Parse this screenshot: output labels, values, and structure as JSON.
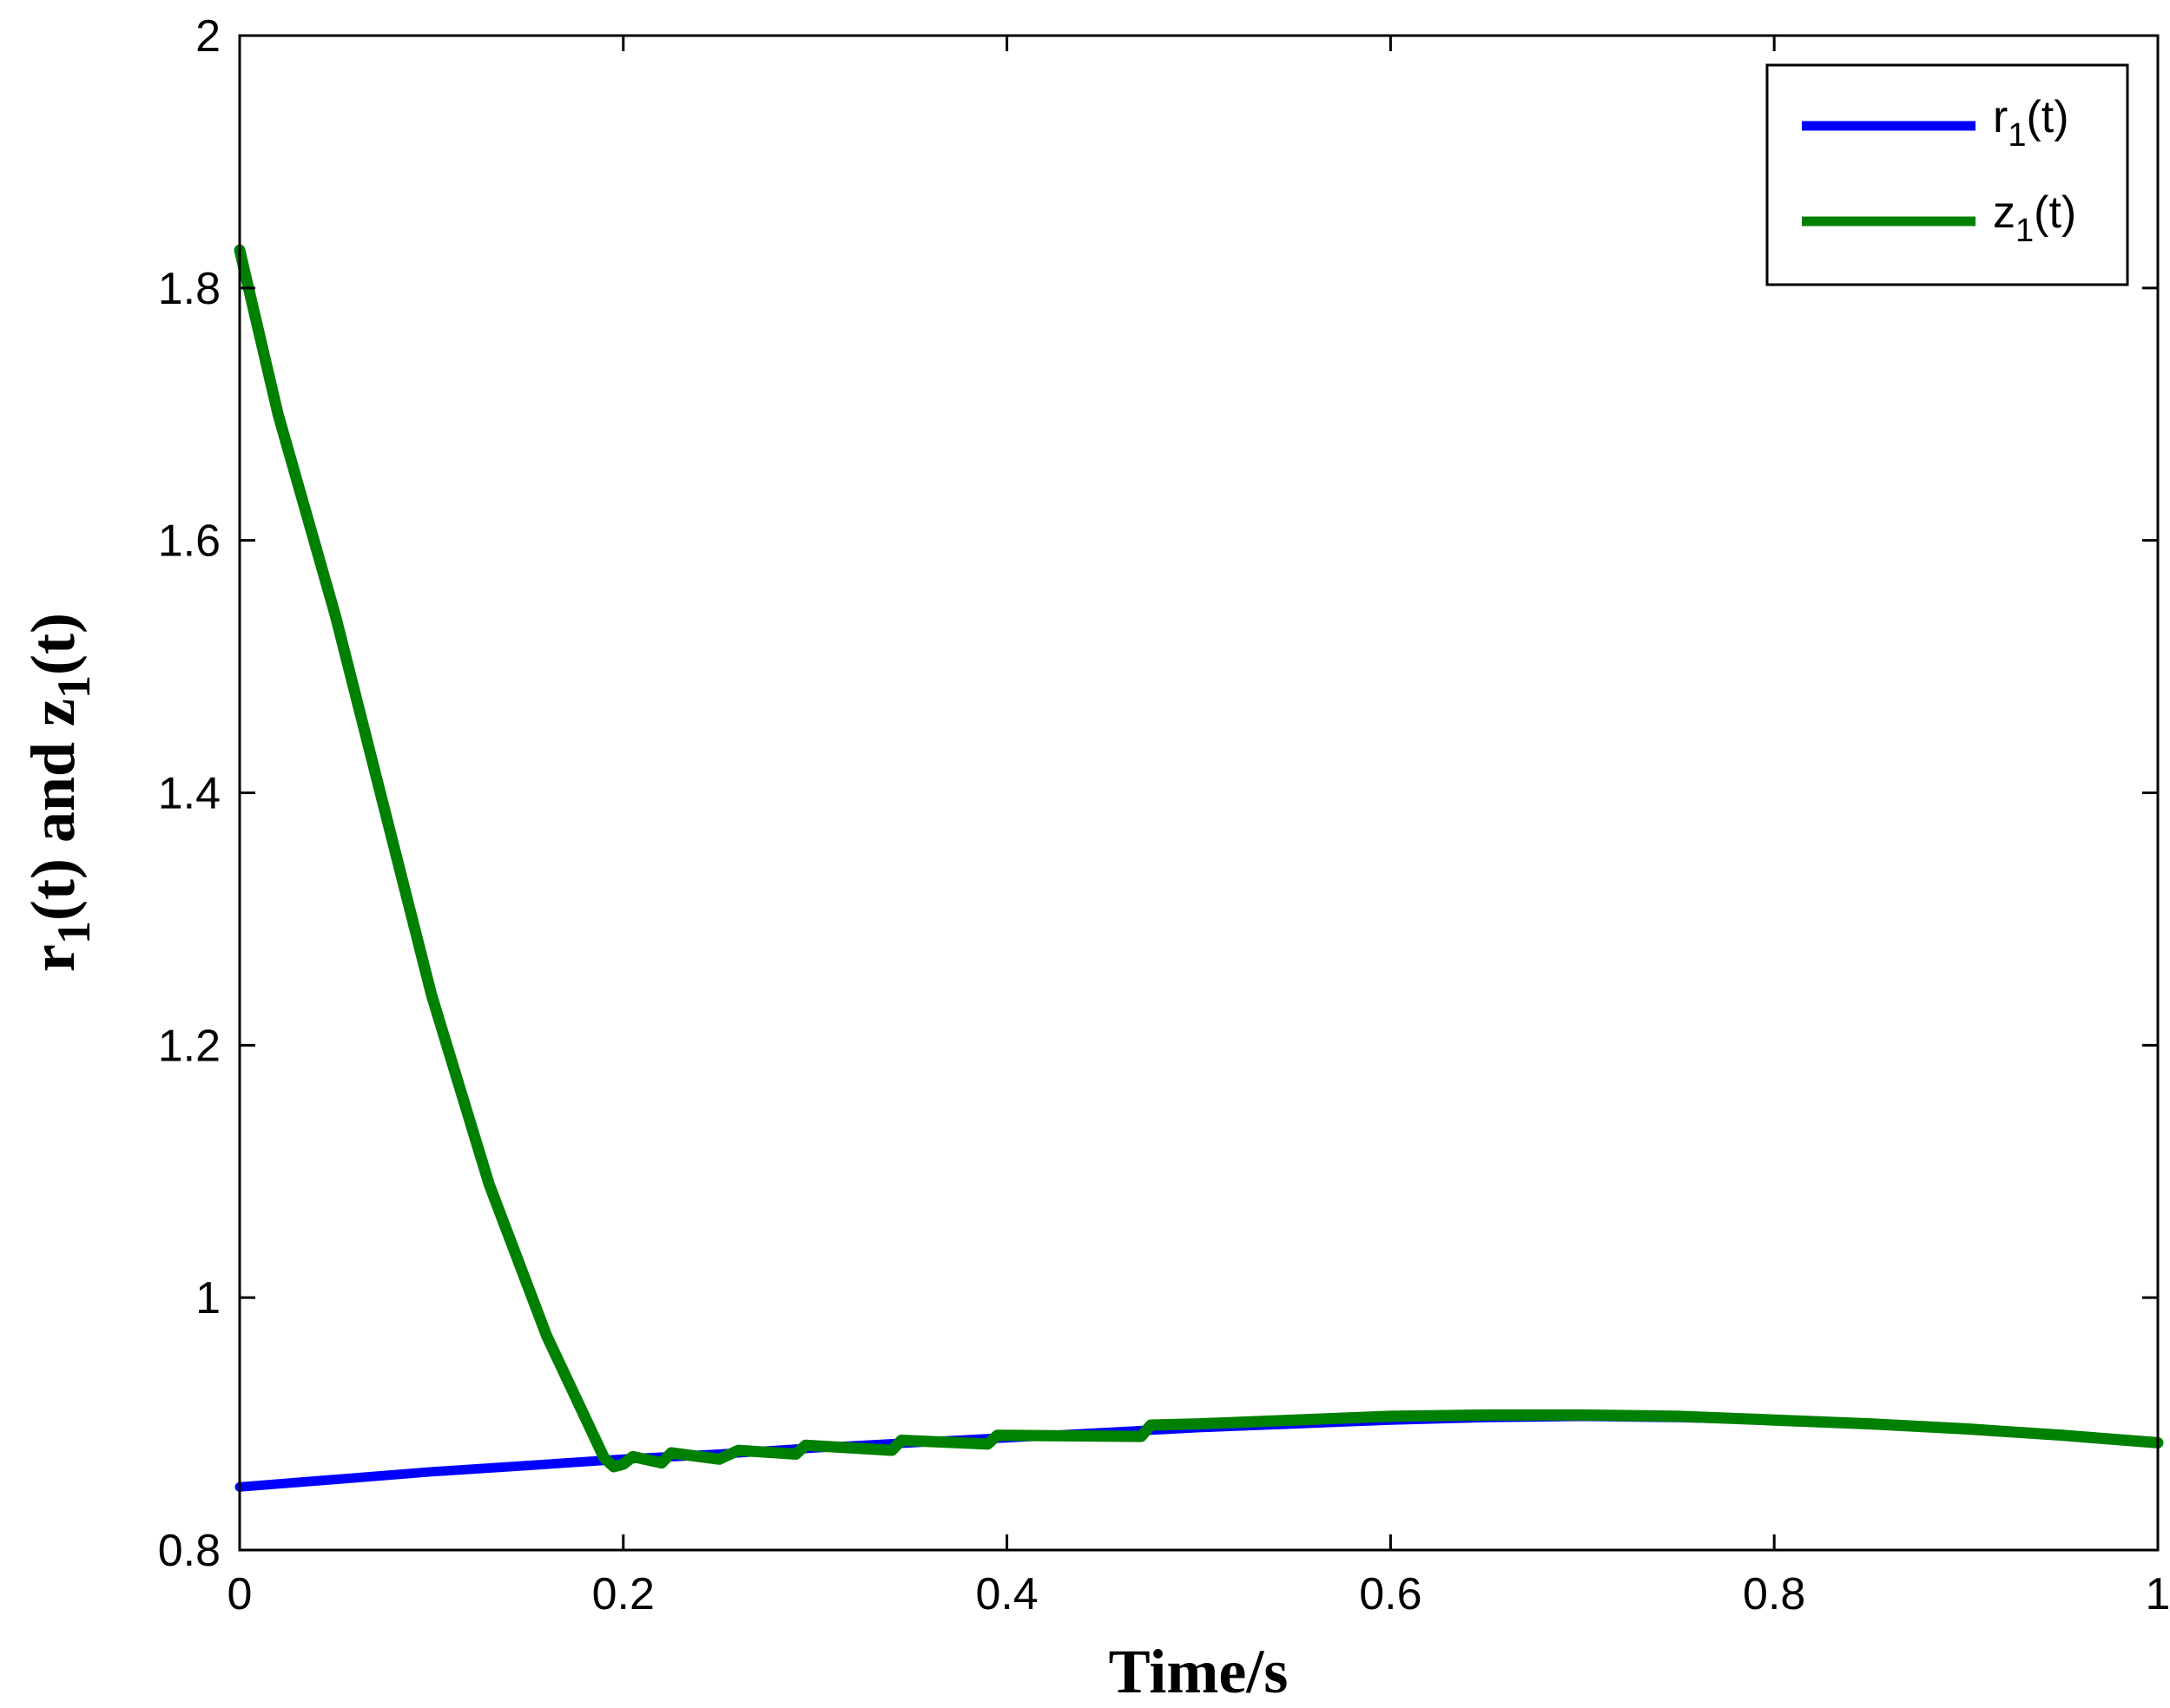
{
  "chart_data": {
    "type": "line",
    "title": "",
    "xlabel": "Time/s",
    "ylabel": {
      "parts": [
        {
          "text": "r",
          "sub": "1"
        },
        {
          "text": "(t) and z",
          "sub": "1"
        },
        {
          "text": "(t)",
          "sub": ""
        }
      ]
    },
    "xlim": [
      0,
      1
    ],
    "ylim": [
      0.8,
      2
    ],
    "xticks": [
      0,
      0.2,
      0.4,
      0.6,
      0.8,
      1
    ],
    "xtick_labels": [
      "0",
      "0.2",
      "0.4",
      "0.6",
      "0.8",
      "1"
    ],
    "yticks": [
      0.8,
      1,
      1.2,
      1.4,
      1.6,
      1.8,
      2
    ],
    "ytick_labels": [
      "0.8",
      "1",
      "1.2",
      "1.4",
      "1.6",
      "1.8",
      "2"
    ],
    "grid": false,
    "legend_position": "top-right",
    "series": [
      {
        "name_main": "r",
        "name_sub": "1",
        "name_suffix": "(t)",
        "color": "#0000ff",
        "x": [
          0,
          0.05,
          0.1,
          0.15,
          0.2,
          0.25,
          0.3,
          0.35,
          0.4,
          0.45,
          0.5,
          0.55,
          0.6,
          0.65,
          0.7,
          0.75,
          0.8,
          0.85,
          0.9,
          0.95,
          1.0
        ],
        "y": [
          0.85,
          0.856,
          0.862,
          0.867,
          0.872,
          0.876,
          0.881,
          0.885,
          0.889,
          0.893,
          0.897,
          0.9,
          0.903,
          0.905,
          0.906,
          0.905,
          0.903,
          0.9,
          0.896,
          0.891,
          0.885
        ]
      },
      {
        "name_main": "z",
        "name_sub": "1",
        "name_suffix": "(t)",
        "color": "#008000",
        "x": [
          0,
          0.02,
          0.05,
          0.08,
          0.1,
          0.13,
          0.16,
          0.19,
          0.195,
          0.2,
          0.205,
          0.22,
          0.225,
          0.25,
          0.26,
          0.29,
          0.295,
          0.34,
          0.345,
          0.39,
          0.395,
          0.47,
          0.475,
          0.5,
          0.55,
          0.6,
          0.65,
          0.7,
          0.75,
          0.8,
          0.85,
          0.9,
          0.95,
          1.0
        ],
        "y": [
          1.83,
          1.7,
          1.54,
          1.36,
          1.24,
          1.09,
          0.97,
          0.873,
          0.866,
          0.868,
          0.874,
          0.869,
          0.877,
          0.872,
          0.879,
          0.876,
          0.883,
          0.879,
          0.887,
          0.884,
          0.891,
          0.89,
          0.899,
          0.9,
          0.903,
          0.906,
          0.907,
          0.907,
          0.906,
          0.903,
          0.9,
          0.896,
          0.891,
          0.885
        ]
      }
    ]
  }
}
